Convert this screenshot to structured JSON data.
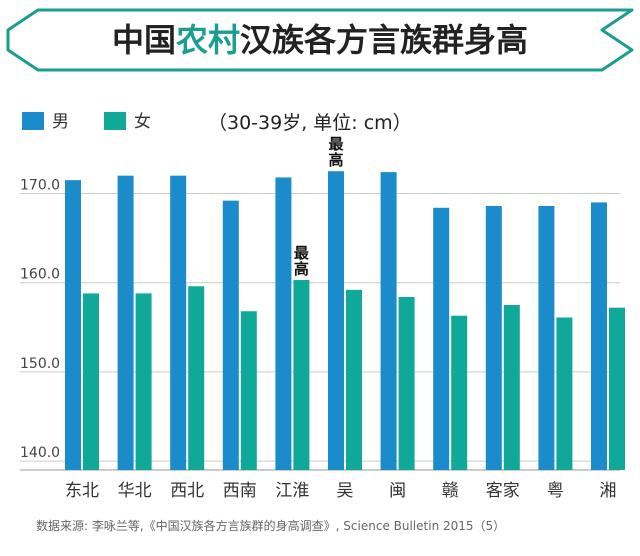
{
  "colors": {
    "male": "#1a8ccc",
    "female": "#10a898",
    "banner_border": "#1a9e8f",
    "banner_fill": "#ffffff",
    "grid": "#cccccc"
  },
  "title": {
    "part1": "中国",
    "accent": "农村",
    "part2": "汉族各方言族群身高"
  },
  "source": "数据来源: 李咏兰等,《中国汉族各方言族群的身高调查》, Science Bulletin 2015（5）",
  "chart_data": {
    "type": "bar",
    "title": "中国农村汉族各方言族群身高",
    "subtitle": "（30-39岁, 单位: cm）",
    "xlabel": "",
    "ylabel": "",
    "ylim": [
      139.0,
      176.0
    ],
    "yticks": [
      {
        "value": 140,
        "label": "140.0"
      },
      {
        "value": 150,
        "label": "150.0"
      },
      {
        "value": 160,
        "label": "160.0"
      },
      {
        "value": 170,
        "label": "170.0"
      }
    ],
    "grid": true,
    "legend": "top-left",
    "categories": [
      "东北",
      "华北",
      "西北",
      "西南",
      "江淮",
      "吴",
      "闽",
      "赣",
      "客家",
      "粤",
      "湘"
    ],
    "series": [
      {
        "name": "男",
        "values": [
          171.5,
          172.0,
          172.0,
          169.2,
          171.8,
          172.5,
          172.4,
          168.4,
          168.6,
          168.6,
          169.0
        ]
      },
      {
        "name": "女",
        "values": [
          158.8,
          158.8,
          159.6,
          156.8,
          160.3,
          159.2,
          158.4,
          156.3,
          157.5,
          156.1,
          157.2
        ]
      }
    ],
    "annotations": [
      {
        "text": "最高",
        "category": "吴",
        "series": "男"
      },
      {
        "text": "最高",
        "category": "江淮",
        "series": "女"
      }
    ]
  }
}
